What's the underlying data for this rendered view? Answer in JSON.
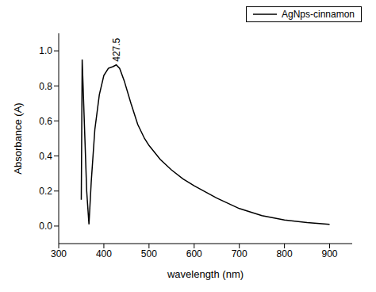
{
  "chart_data": {
    "type": "line",
    "x_label": "wavelength (nm)",
    "y_label": "Absorbance (A)",
    "x": [
      350,
      352,
      358,
      362,
      367,
      372,
      380,
      390,
      400,
      410,
      420,
      427.5,
      435,
      445,
      460,
      475,
      490,
      500,
      525,
      550,
      575,
      600,
      650,
      700,
      750,
      800,
      850,
      900
    ],
    "series": [
      {
        "name": "AgNps-cinnamon",
        "color": "#000000",
        "values": [
          0.15,
          0.95,
          0.5,
          0.2,
          0.01,
          0.25,
          0.55,
          0.75,
          0.86,
          0.9,
          0.91,
          0.92,
          0.9,
          0.83,
          0.7,
          0.58,
          0.5,
          0.46,
          0.38,
          0.32,
          0.27,
          0.23,
          0.16,
          0.1,
          0.06,
          0.035,
          0.02,
          0.01
        ]
      }
    ],
    "xlim": [
      300,
      950
    ],
    "xticks": [
      300,
      400,
      500,
      600,
      700,
      800,
      900
    ],
    "ylim": [
      -0.1,
      1.1
    ],
    "yticks": [
      {
        "value": 0,
        "label": "0.0"
      },
      0.2,
      0.4,
      0.6,
      0.8,
      {
        "value": 1,
        "label": "1.0"
      }
    ],
    "annotations": [
      {
        "text": "427.5",
        "x": 427.5,
        "y": 0.92
      }
    ],
    "legend": "top-right",
    "grid": false
  }
}
